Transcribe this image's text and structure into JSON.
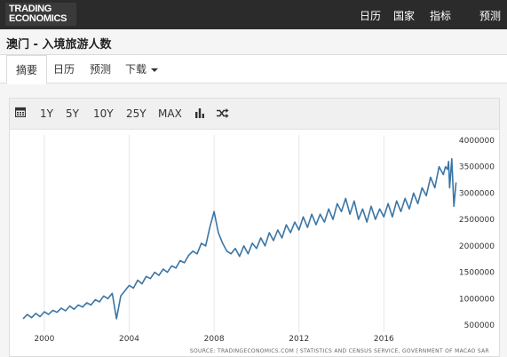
{
  "header": {
    "logo_line1": "TRADING",
    "logo_line2": "ECONOMICS",
    "nav": [
      "日历",
      "国家",
      "指标",
      "预测"
    ]
  },
  "page": {
    "title": "澳门 - 入境旅游人数"
  },
  "tabs": [
    {
      "label": "摘要",
      "active": true
    },
    {
      "label": "日历",
      "active": false
    },
    {
      "label": "预测",
      "active": false
    },
    {
      "label": "下载",
      "active": false,
      "dropdown": true
    }
  ],
  "toolbar": {
    "calendar_icon": "calendar-icon",
    "ranges": [
      "1Y",
      "5Y",
      "10Y",
      "25Y",
      "MAX"
    ],
    "bar_chart_icon": "bar-chart-icon",
    "shuffle_icon": "shuffle-icon"
  },
  "colors": {
    "line": "#3a75a5",
    "topbar": "#2b2b2b"
  },
  "source_text": "SOURCE: TRADINGECONOMICS.COM  |  STATISTICS AND CENSUS SERVICE, GOVERNMENT OF MACAO SAR",
  "chart_data": {
    "type": "line",
    "title": "",
    "xlabel": "",
    "ylabel": "",
    "x_ticks": [
      "2000",
      "2004",
      "2008",
      "2012",
      "2016"
    ],
    "y_ticks": [
      "500000",
      "1000000",
      "1500000",
      "2000000",
      "2500000",
      "3000000",
      "3500000",
      "4000000"
    ],
    "ylim": [
      500000,
      4000000
    ],
    "xlim": [
      1999.0,
      2019.5
    ],
    "y_axis_side": "right",
    "grid": "vertical-lines",
    "series": [
      {
        "values": [
          [
            1999.0,
            620000
          ],
          [
            1999.2,
            700000
          ],
          [
            1999.4,
            640000
          ],
          [
            1999.6,
            720000
          ],
          [
            1999.8,
            660000
          ],
          [
            2000.0,
            750000
          ],
          [
            2000.2,
            700000
          ],
          [
            2000.4,
            780000
          ],
          [
            2000.6,
            740000
          ],
          [
            2000.8,
            820000
          ],
          [
            2001.0,
            770000
          ],
          [
            2001.2,
            860000
          ],
          [
            2001.4,
            800000
          ],
          [
            2001.6,
            880000
          ],
          [
            2001.8,
            840000
          ],
          [
            2002.0,
            920000
          ],
          [
            2002.2,
            880000
          ],
          [
            2002.4,
            980000
          ],
          [
            2002.6,
            940000
          ],
          [
            2002.8,
            1050000
          ],
          [
            2003.0,
            1000000
          ],
          [
            2003.2,
            1100000
          ],
          [
            2003.4,
            620000
          ],
          [
            2003.6,
            1050000
          ],
          [
            2003.8,
            1150000
          ],
          [
            2004.0,
            1250000
          ],
          [
            2004.2,
            1200000
          ],
          [
            2004.4,
            1350000
          ],
          [
            2004.6,
            1280000
          ],
          [
            2004.8,
            1420000
          ],
          [
            2005.0,
            1380000
          ],
          [
            2005.2,
            1500000
          ],
          [
            2005.4,
            1440000
          ],
          [
            2005.6,
            1560000
          ],
          [
            2005.8,
            1500000
          ],
          [
            2006.0,
            1620000
          ],
          [
            2006.2,
            1580000
          ],
          [
            2006.4,
            1720000
          ],
          [
            2006.6,
            1680000
          ],
          [
            2006.8,
            1820000
          ],
          [
            2007.0,
            1900000
          ],
          [
            2007.2,
            1850000
          ],
          [
            2007.4,
            2050000
          ],
          [
            2007.6,
            2000000
          ],
          [
            2007.8,
            2350000
          ],
          [
            2008.0,
            2650000
          ],
          [
            2008.2,
            2250000
          ],
          [
            2008.4,
            2050000
          ],
          [
            2008.6,
            1900000
          ],
          [
            2008.8,
            1850000
          ],
          [
            2009.0,
            1950000
          ],
          [
            2009.2,
            1800000
          ],
          [
            2009.4,
            2000000
          ],
          [
            2009.6,
            1850000
          ],
          [
            2009.8,
            2050000
          ],
          [
            2010.0,
            1950000
          ],
          [
            2010.2,
            2150000
          ],
          [
            2010.4,
            2000000
          ],
          [
            2010.6,
            2250000
          ],
          [
            2010.8,
            2100000
          ],
          [
            2011.0,
            2300000
          ],
          [
            2011.2,
            2150000
          ],
          [
            2011.4,
            2400000
          ],
          [
            2011.6,
            2250000
          ],
          [
            2011.8,
            2450000
          ],
          [
            2012.0,
            2300000
          ],
          [
            2012.2,
            2550000
          ],
          [
            2012.4,
            2350000
          ],
          [
            2012.6,
            2600000
          ],
          [
            2012.8,
            2400000
          ],
          [
            2013.0,
            2600000
          ],
          [
            2013.2,
            2450000
          ],
          [
            2013.4,
            2700000
          ],
          [
            2013.6,
            2500000
          ],
          [
            2013.8,
            2800000
          ],
          [
            2014.0,
            2650000
          ],
          [
            2014.2,
            2900000
          ],
          [
            2014.4,
            2600000
          ],
          [
            2014.6,
            2850000
          ],
          [
            2014.8,
            2500000
          ],
          [
            2015.0,
            2700000
          ],
          [
            2015.2,
            2450000
          ],
          [
            2015.4,
            2750000
          ],
          [
            2015.6,
            2500000
          ],
          [
            2015.8,
            2700000
          ],
          [
            2016.0,
            2550000
          ],
          [
            2016.2,
            2800000
          ],
          [
            2016.4,
            2550000
          ],
          [
            2016.6,
            2850000
          ],
          [
            2016.8,
            2650000
          ],
          [
            2017.0,
            2900000
          ],
          [
            2017.2,
            2700000
          ],
          [
            2017.4,
            3000000
          ],
          [
            2017.6,
            2800000
          ],
          [
            2017.8,
            3100000
          ],
          [
            2018.0,
            2950000
          ],
          [
            2018.2,
            3300000
          ],
          [
            2018.4,
            3100000
          ],
          [
            2018.6,
            3500000
          ],
          [
            2018.8,
            3350000
          ],
          [
            2018.9,
            3500000
          ],
          [
            2019.0,
            3450000
          ],
          [
            2019.05,
            3600000
          ],
          [
            2019.1,
            3100000
          ],
          [
            2019.2,
            3650000
          ],
          [
            2019.3,
            2750000
          ],
          [
            2019.4,
            3200000
          ]
        ]
      }
    ]
  }
}
